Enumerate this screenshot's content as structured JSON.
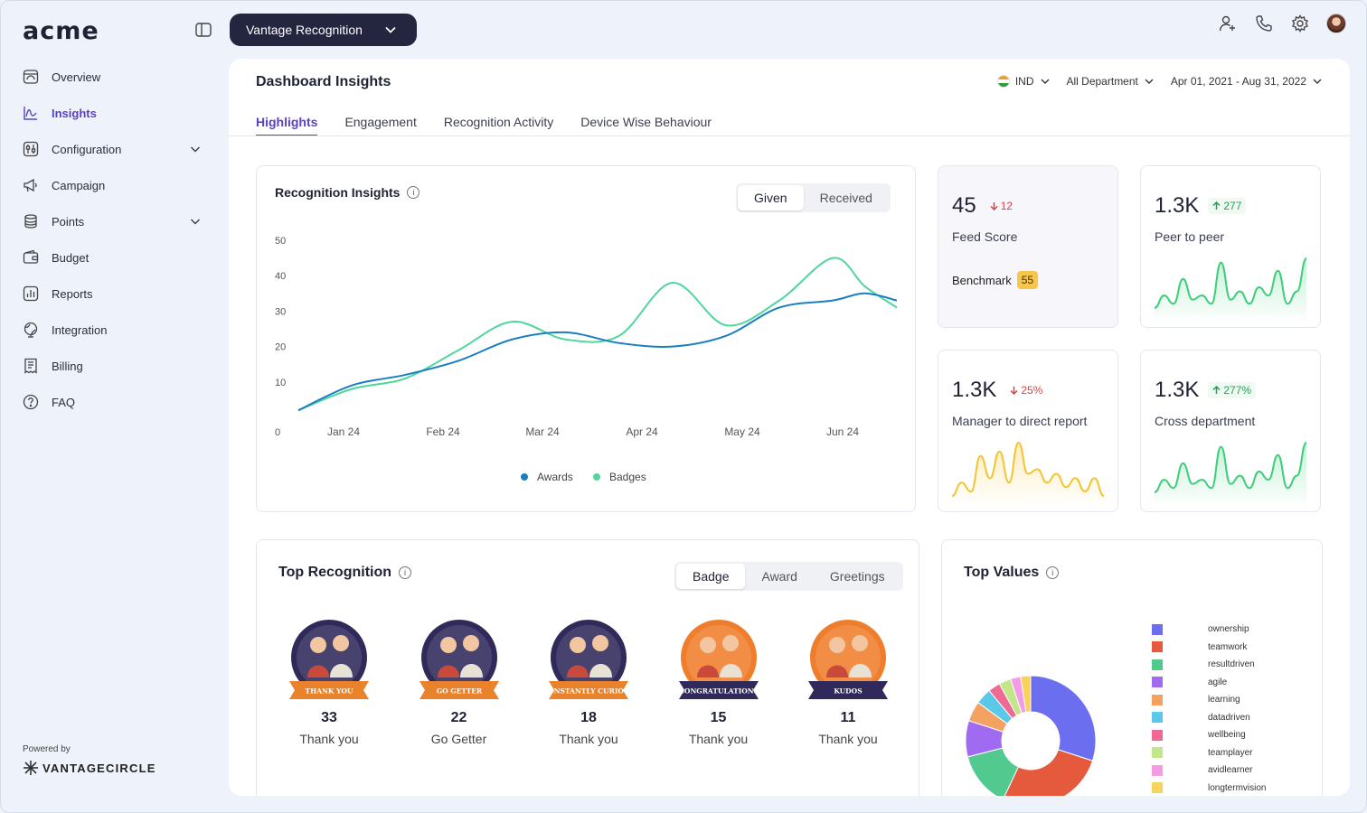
{
  "brand": {
    "logo": "acme",
    "powered_by": "Powered by",
    "footer_brand": "VANTAGECIRCLE"
  },
  "app_switcher": {
    "label": "Vantage Recognition"
  },
  "sidebar": {
    "items": [
      {
        "label": "Overview",
        "icon": "overview-icon"
      },
      {
        "label": "Insights",
        "icon": "insights-icon",
        "active": true
      },
      {
        "label": "Configuration",
        "icon": "configuration-icon",
        "expandable": true
      },
      {
        "label": "Campaign",
        "icon": "megaphone-icon"
      },
      {
        "label": "Points",
        "icon": "coins-icon",
        "expandable": true
      },
      {
        "label": "Budget",
        "icon": "wallet-icon"
      },
      {
        "label": "Reports",
        "icon": "reports-icon"
      },
      {
        "label": "Integration",
        "icon": "globe-icon"
      },
      {
        "label": "Billing",
        "icon": "billing-icon"
      },
      {
        "label": "FAQ",
        "icon": "help-icon"
      }
    ]
  },
  "header": {
    "title": "Dashboard Insights",
    "filters": {
      "country": "IND",
      "department": "All Department",
      "date_range": "Apr 01, 2021 - Aug 31, 2022"
    },
    "tabs": [
      "Highlights",
      "Engagement",
      "Recognition Activity",
      "Device Wise Behaviour"
    ],
    "active_tab": "Highlights"
  },
  "recognition_insights": {
    "title": "Recognition Insights",
    "toggle": [
      "Given",
      "Received"
    ],
    "active_toggle": "Given"
  },
  "chart_data": {
    "type": "line",
    "title": "Recognition Insights",
    "categories": [
      "Jan 24",
      "Feb 24",
      "Mar 24",
      "Apr 24",
      "May 24",
      "Jun 24"
    ],
    "yticks": [
      0,
      10,
      20,
      30,
      40,
      50
    ],
    "ylim": [
      0,
      50
    ],
    "x": [
      0,
      0.5,
      1,
      1.5,
      2,
      2.5,
      3,
      3.5,
      4,
      4.5,
      5,
      5.3,
      5.6
    ],
    "series": [
      {
        "name": "Awards",
        "color": "#1a7fc1",
        "values": [
          2,
          9,
          12,
          16,
          22,
          24,
          21,
          20,
          23,
          31,
          33,
          35,
          33
        ]
      },
      {
        "name": "Badges",
        "color": "#4fd69c",
        "values": [
          2,
          8,
          11,
          19,
          27,
          22,
          23,
          38,
          26,
          33,
          45,
          37,
          31
        ]
      }
    ],
    "legend_position": "bottom"
  },
  "stats": [
    {
      "value": "45",
      "delta": "12",
      "direction": "down",
      "label": "Feed Score",
      "benchmark_label": "Benchmark",
      "benchmark": "55"
    },
    {
      "value": "1.3K",
      "delta": "277",
      "direction": "up",
      "label": "Peer to peer",
      "spark": [
        2,
        5,
        3,
        9,
        4,
        5,
        3,
        13,
        4,
        6,
        3,
        7,
        5,
        11,
        3,
        6,
        14
      ],
      "color": "#3ccf79"
    },
    {
      "value": "1.3K",
      "delta": "25%",
      "direction": "down",
      "label": "Manager to direct report",
      "spark": [
        1,
        4,
        2,
        10,
        5,
        11,
        4,
        13,
        6,
        7,
        4,
        6,
        3,
        5,
        2,
        5,
        1
      ],
      "color": "#f4c430"
    },
    {
      "value": "1.3K",
      "delta": "277%",
      "direction": "up",
      "label": "Cross department",
      "spark": [
        2,
        5,
        3,
        9,
        4,
        5,
        3,
        13,
        4,
        6,
        3,
        7,
        5,
        11,
        3,
        6,
        14
      ],
      "color": "#3ccf79"
    }
  ],
  "top_recognition": {
    "title": "Top Recognition",
    "toggle": [
      "Badge",
      "Award",
      "Greetings"
    ],
    "active_toggle": "Badge",
    "badges": [
      {
        "ribbon": "THANK YOU",
        "count": "33",
        "label": "Thank you",
        "ring": "#2f2a5a",
        "ribbon_color": "#e9822b"
      },
      {
        "ribbon": "GO GETTER",
        "count": "22",
        "label": "Go Getter",
        "ring": "#2f2a5a",
        "ribbon_color": "#e9822b"
      },
      {
        "ribbon": "CONSTANTLY CURIOUS",
        "count": "18",
        "label": "Thank you",
        "ring": "#2f2a5a",
        "ribbon_color": "#e9822b"
      },
      {
        "ribbon": "CONGRATULATIONS",
        "count": "15",
        "label": "Thank you",
        "ring": "#ef7e2c",
        "ribbon_color": "#2f2a5a"
      },
      {
        "ribbon": "KUDOS",
        "count": "11",
        "label": "Thank you",
        "ring": "#ef7e2c",
        "ribbon_color": "#2f2a5a"
      }
    ]
  },
  "top_values": {
    "title": "Top Values",
    "legend": [
      {
        "name": "ownership",
        "color": "#6c6ef0",
        "share": 30
      },
      {
        "name": "teamwork",
        "color": "#e5593c",
        "share": 27
      },
      {
        "name": "resultdriven",
        "color": "#52c98f",
        "share": 14
      },
      {
        "name": "agile",
        "color": "#a06bf0",
        "share": 9
      },
      {
        "name": "learning",
        "color": "#f4a261",
        "share": 5
      },
      {
        "name": "datadriven",
        "color": "#5bc8ea",
        "share": 4
      },
      {
        "name": "wellbeing",
        "color": "#ef6a92",
        "share": 3
      },
      {
        "name": "teamplayer",
        "color": "#c4e68a",
        "share": 3
      },
      {
        "name": "avidlearner",
        "color": "#f49be8",
        "share": 2.5
      },
      {
        "name": "longtermvision",
        "color": "#f8d35c",
        "share": 2.5
      }
    ]
  }
}
